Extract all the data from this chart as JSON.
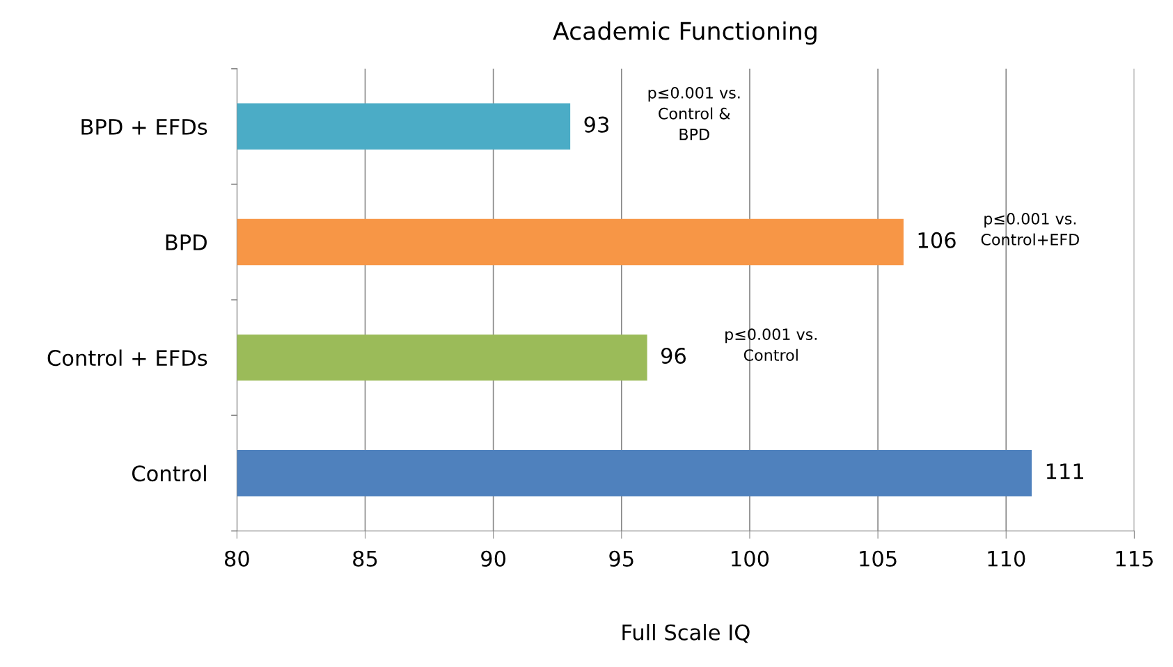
{
  "chart_data": {
    "type": "bar",
    "orientation": "horizontal",
    "title": "Academic Functioning",
    "xlabel": "Full Scale IQ",
    "categories": [
      "BPD + EFDs",
      "BPD",
      "Control + EFDs",
      "Control"
    ],
    "values": [
      93,
      106,
      96,
      111
    ],
    "colors": [
      "#4bacc6",
      "#f79646",
      "#9bbb59",
      "#4f81bd"
    ],
    "xlim": [
      80,
      115
    ],
    "xticks": [
      80,
      85,
      90,
      95,
      100,
      105,
      110,
      115
    ],
    "grid": "x",
    "data_labels": true,
    "annotations": [
      "p≤0.001 vs.\nControl &\nBPD",
      "p≤0.001 vs.\nControl+EFD",
      "p≤0.001 vs.\nControl"
    ]
  }
}
